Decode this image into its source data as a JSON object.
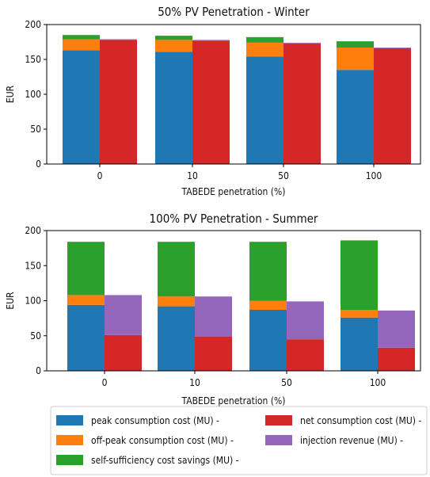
{
  "legend": {
    "items": [
      {
        "label": "peak consumption cost (MU) -",
        "color": "#1f77b4"
      },
      {
        "label": "off-peak consumption cost (MU) -",
        "color": "#ff7f0e"
      },
      {
        "label": "self-sufficiency cost savings (MU) -",
        "color": "#2ca02c"
      },
      {
        "label": "net consumption cost (MU) -",
        "color": "#d62728"
      },
      {
        "label": "injection revenue (MU) -",
        "color": "#9467bd"
      }
    ]
  },
  "chart_data": [
    {
      "type": "bar",
      "title": "50% PV Penetration - Winter",
      "xlabel": "TABEDE penetration (%)",
      "ylabel": "EUR",
      "ylim": [
        0,
        200
      ],
      "yticks": [
        "0",
        "50",
        "100",
        "150",
        "200"
      ],
      "categories": [
        "0",
        "10",
        "50",
        "100"
      ],
      "grid": false,
      "stack_left": [
        {
          "name": "peak consumption cost (MU) -",
          "color": "#1f77b4",
          "values": [
            163,
            161,
            154,
            135
          ]
        },
        {
          "name": "off-peak consumption cost (MU) -",
          "color": "#ff7f0e",
          "values": [
            16,
            17,
            20,
            32
          ]
        },
        {
          "name": "self-sufficiency cost savings (MU) -",
          "color": "#2ca02c",
          "values": [
            6,
            6,
            8,
            9
          ]
        }
      ],
      "stack_right": [
        {
          "name": "net consumption cost (MU) -",
          "color": "#d62728",
          "values": [
            178,
            177,
            173,
            166
          ]
        },
        {
          "name": "injection revenue (MU) -",
          "color": "#9467bd",
          "values": [
            1,
            1,
            1,
            1
          ]
        }
      ]
    },
    {
      "type": "bar",
      "title": "100% PV Penetration - Summer",
      "xlabel": "TABEDE penetration (%)",
      "ylabel": "EUR",
      "ylim": [
        0,
        200
      ],
      "yticks": [
        "0",
        "50",
        "100",
        "150",
        "200"
      ],
      "categories": [
        "0",
        "10",
        "50",
        "100"
      ],
      "grid": false,
      "stack_left": [
        {
          "name": "peak consumption cost (MU) -",
          "color": "#1f77b4",
          "values": [
            94,
            92,
            87,
            76
          ]
        },
        {
          "name": "off-peak consumption cost (MU) -",
          "color": "#ff7f0e",
          "values": [
            14,
            14,
            13,
            11
          ]
        },
        {
          "name": "self-sufficiency cost savings (MU) -",
          "color": "#2ca02c",
          "values": [
            76,
            78,
            84,
            99
          ]
        }
      ],
      "stack_right": [
        {
          "name": "net consumption cost (MU) -",
          "color": "#d62728",
          "values": [
            51,
            49,
            45,
            33
          ]
        },
        {
          "name": "injection revenue (MU) -",
          "color": "#9467bd",
          "values": [
            57,
            57,
            54,
            53
          ]
        }
      ]
    }
  ]
}
